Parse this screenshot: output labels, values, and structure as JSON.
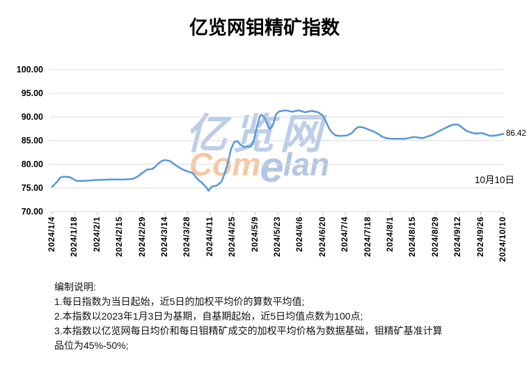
{
  "chart_data": {
    "type": "line",
    "title": "亿览网钼精矿指数",
    "xlabel": "",
    "ylabel": "",
    "ylim": [
      70,
      100
    ],
    "y_ticks": [
      "100.00",
      "95.00",
      "90.00",
      "85.00",
      "80.00",
      "75.00",
      "70.00"
    ],
    "x_ticks": [
      "2024/1/4",
      "2024/1/18",
      "2024/2/1",
      "2024/2/15",
      "2024/2/29",
      "2024/3/14",
      "2024/3/28",
      "2024/4/11",
      "2024/4/25",
      "2024/5/9",
      "2024/5/23",
      "2024/6/6",
      "2024/6/20",
      "2024/7/4",
      "2024/7/18",
      "2024/8/1",
      "2024/8/15",
      "2024/8/29",
      "2024/9/12",
      "2024/9/26",
      "2024/10/10"
    ],
    "x_start": "2024/1/4",
    "x_span_days": 280,
    "grid": "horizontal",
    "legend": "none",
    "line_color": "#5B9BD5",
    "end_label": "86.42",
    "annotation": "10月10日",
    "points": [
      [
        "2024/1/4",
        75.3
      ],
      [
        "2024/1/5",
        75.6
      ],
      [
        "2024/1/7",
        76.3
      ],
      [
        "2024/1/9",
        77.2
      ],
      [
        "2024/1/11",
        77.4
      ],
      [
        "2024/1/15",
        77.3
      ],
      [
        "2024/1/17",
        76.9
      ],
      [
        "2024/1/19",
        76.5
      ],
      [
        "2024/1/23",
        76.5
      ],
      [
        "2024/1/28",
        76.6
      ],
      [
        "2024/2/1",
        76.7
      ],
      [
        "2024/2/9",
        76.8
      ],
      [
        "2024/2/17",
        76.8
      ],
      [
        "2024/2/23",
        76.9
      ],
      [
        "2024/2/26",
        77.4
      ],
      [
        "2024/2/29",
        78.2
      ],
      [
        "2024/3/3",
        78.9
      ],
      [
        "2024/3/6",
        79.0
      ],
      [
        "2024/3/8",
        79.5
      ],
      [
        "2024/3/10",
        80.2
      ],
      [
        "2024/3/12",
        80.7
      ],
      [
        "2024/3/14",
        80.9
      ],
      [
        "2024/3/17",
        80.7
      ],
      [
        "2024/3/19",
        80.2
      ],
      [
        "2024/3/22",
        79.5
      ],
      [
        "2024/3/25",
        78.9
      ],
      [
        "2024/3/28",
        78.5
      ],
      [
        "2024/3/31",
        78.2
      ],
      [
        "2024/4/2",
        77.4
      ],
      [
        "2024/4/4",
        76.6
      ],
      [
        "2024/4/6",
        76.1
      ],
      [
        "2024/4/9",
        75.0
      ],
      [
        "2024/4/10",
        74.4
      ],
      [
        "2024/4/12",
        75.3
      ],
      [
        "2024/4/15",
        75.5
      ],
      [
        "2024/4/18",
        76.3
      ],
      [
        "2024/4/20",
        78.0
      ],
      [
        "2024/4/22",
        80.3
      ],
      [
        "2024/4/24",
        83.2
      ],
      [
        "2024/4/26",
        84.7
      ],
      [
        "2024/4/28",
        84.9
      ],
      [
        "2024/4/30",
        84.1
      ],
      [
        "2024/5/2",
        83.7
      ],
      [
        "2024/5/6",
        83.7
      ],
      [
        "2024/5/8",
        84.8
      ],
      [
        "2024/5/10",
        87.8
      ],
      [
        "2024/5/12",
        90.2
      ],
      [
        "2024/5/13",
        90.5
      ],
      [
        "2024/5/15",
        89.8
      ],
      [
        "2024/5/17",
        88.0
      ],
      [
        "2024/5/18",
        87.4
      ],
      [
        "2024/5/20",
        88.3
      ],
      [
        "2024/5/22",
        90.6
      ],
      [
        "2024/5/24",
        91.2
      ],
      [
        "2024/5/28",
        91.4
      ],
      [
        "2024/6/1",
        91.1
      ],
      [
        "2024/6/5",
        91.4
      ],
      [
        "2024/6/9",
        91.0
      ],
      [
        "2024/6/13",
        91.3
      ],
      [
        "2024/6/17",
        91.0
      ],
      [
        "2024/6/20",
        90.3
      ],
      [
        "2024/6/22",
        89.0
      ],
      [
        "2024/6/24",
        87.5
      ],
      [
        "2024/6/26",
        86.6
      ],
      [
        "2024/6/28",
        86.1
      ],
      [
        "2024/7/1",
        86.0
      ],
      [
        "2024/7/5",
        86.1
      ],
      [
        "2024/7/8",
        86.6
      ],
      [
        "2024/7/10",
        87.4
      ],
      [
        "2024/7/12",
        87.9
      ],
      [
        "2024/7/15",
        87.8
      ],
      [
        "2024/7/18",
        87.4
      ],
      [
        "2024/7/21",
        87.0
      ],
      [
        "2024/7/24",
        86.5
      ],
      [
        "2024/7/27",
        85.8
      ],
      [
        "2024/7/30",
        85.5
      ],
      [
        "2024/8/2",
        85.4
      ],
      [
        "2024/8/6",
        85.4
      ],
      [
        "2024/8/10",
        85.4
      ],
      [
        "2024/8/13",
        85.6
      ],
      [
        "2024/8/16",
        85.8
      ],
      [
        "2024/8/19",
        85.6
      ],
      [
        "2024/8/21",
        85.5
      ],
      [
        "2024/8/24",
        85.9
      ],
      [
        "2024/8/27",
        86.2
      ],
      [
        "2024/8/30",
        86.8
      ],
      [
        "2024/9/3",
        87.5
      ],
      [
        "2024/9/6",
        88.0
      ],
      [
        "2024/9/9",
        88.4
      ],
      [
        "2024/9/12",
        88.4
      ],
      [
        "2024/9/14",
        87.9
      ],
      [
        "2024/9/17",
        87.1
      ],
      [
        "2024/9/20",
        86.7
      ],
      [
        "2024/9/23",
        86.5
      ],
      [
        "2024/9/27",
        86.6
      ],
      [
        "2024/9/30",
        86.2
      ],
      [
        "2024/10/2",
        86.0
      ],
      [
        "2024/10/6",
        86.1
      ],
      [
        "2024/10/8",
        86.3
      ],
      [
        "2024/10/10",
        86.42
      ]
    ],
    "colors": {
      "gridline": "#D9D9D9",
      "axis": "#C6C6C6",
      "label_text": "#000000"
    }
  },
  "watermark": {
    "cjk": "亿览网",
    "latin_com": "Com",
    "latin_e": "e",
    "latin_lan": "lan",
    "color_blue": "#7FA3D4",
    "color_orange": "#F0A468"
  },
  "notes": {
    "lines": [
      "编制说明:",
      "1.每日指数为当日起始，近5日的加权平均价的算数平均值;",
      "2.本指数以2023年1月3日为基期，自基期起始，近5日均值点数为100点;",
      "3.本指数以亿览网每日均价和每日钼精矿成交的加权平均价格为数据基础，钼精矿基准计算",
      "品位为45%-50%;"
    ]
  }
}
